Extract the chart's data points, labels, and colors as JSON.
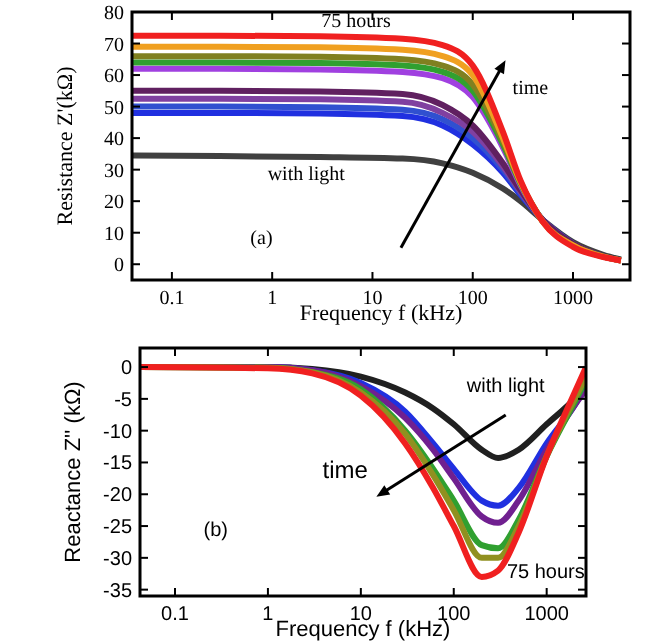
{
  "chart_data": [
    {
      "type": "line",
      "xlabel": "Frequency f (kHz)",
      "ylabel": "Resistance Z'(kΩ)",
      "log": "x",
      "xlim": [
        0.04,
        3700
      ],
      "ylim": [
        -5,
        80
      ],
      "xticks": [
        0.1,
        1,
        10,
        100,
        1000
      ],
      "yticks": [
        0,
        10,
        20,
        30,
        40,
        50,
        60,
        70,
        80
      ],
      "marker": "none",
      "line_style": "solid",
      "grid": false,
      "x": [
        0.04,
        0.3,
        3,
        20,
        50,
        100,
        200,
        300,
        500,
        1000,
        2000,
        3000
      ],
      "series": [
        {
          "color": "#404040",
          "values": [
            34.5,
            34.3,
            34,
            33.5,
            32,
            29,
            24,
            20,
            14,
            7,
            3,
            1.5
          ]
        },
        {
          "color": "#2030e0",
          "values": [
            48,
            48,
            47.8,
            47,
            44,
            38,
            29,
            22,
            14,
            6.5,
            null,
            null
          ]
        },
        {
          "color": "#3050d0",
          "values": [
            50,
            50,
            49.8,
            49,
            46,
            40,
            30,
            22.5,
            14,
            6.5,
            null,
            null
          ]
        },
        {
          "color": "#8040a0",
          "values": [
            52.5,
            52.5,
            52.3,
            51.5,
            48,
            42,
            31,
            23,
            14,
            6.5,
            2.5,
            1.2
          ]
        },
        {
          "color": "#602060",
          "values": [
            55,
            55,
            54.8,
            54,
            50.5,
            44,
            32,
            23.5,
            14,
            6.5,
            2.5,
            1.2
          ]
        },
        {
          "color": "#a040e0",
          "values": [
            62,
            62,
            61.8,
            61,
            59,
            53,
            37,
            25,
            13.5,
            null,
            null,
            null
          ]
        },
        {
          "color": "#30a030",
          "values": [
            64,
            64,
            63.8,
            63,
            61,
            55,
            38,
            25.5,
            13.5,
            null,
            null,
            null
          ]
        },
        {
          "color": "#808020",
          "values": [
            66,
            66,
            65.8,
            65,
            63,
            57,
            39,
            26,
            13.5,
            6,
            2.4,
            1.2
          ]
        },
        {
          "color": "#f0a020",
          "values": [
            69,
            69,
            68.8,
            68,
            66,
            60,
            40,
            26,
            13.5,
            6,
            2.4,
            1.2
          ]
        },
        {
          "color": "#f02020",
          "values": [
            72.5,
            72.5,
            72.3,
            71.5,
            69.5,
            63,
            42,
            26.5,
            13.5,
            5.5,
            2.3,
            1.2
          ]
        }
      ],
      "annotations": [
        "75 hours",
        "with light",
        "time",
        "(a)"
      ]
    },
    {
      "type": "line",
      "xlabel": "Frequency f (kHz)",
      "ylabel": "Reactance Z'' (kΩ)",
      "log": "x",
      "xlim": [
        0.042,
        2650
      ],
      "ylim": [
        -36,
        3
      ],
      "xticks": [
        0.1,
        1,
        10,
        100,
        1000
      ],
      "yticks": [
        0,
        -5,
        -10,
        -15,
        -20,
        -25,
        -30,
        -35
      ],
      "marker": "none",
      "line_style": "solid",
      "grid": false,
      "x": [
        0.042,
        1,
        3,
        10,
        30,
        60,
        100,
        200,
        300,
        500,
        1000,
        2000,
        2650
      ],
      "series": [
        {
          "color": "#202020",
          "values": [
            0,
            0,
            -0.3,
            -1.5,
            -4,
            -6.5,
            -9,
            -13,
            -14.3,
            -13,
            -9,
            -5,
            -3
          ]
        },
        {
          "color": "#2030e0",
          "values": [
            0,
            0,
            -0.5,
            -2.5,
            -7,
            -12,
            -16,
            -21,
            -21.8,
            -19,
            -12,
            -6,
            -3
          ]
        },
        {
          "color": "#702090",
          "values": [
            0,
            0,
            -0.5,
            -3,
            -8,
            -13,
            -17.5,
            -23.5,
            -24.5,
            -21,
            -13,
            -6,
            -3.5
          ]
        },
        {
          "color": "#30a030",
          "values": [
            0,
            -0.1,
            -0.8,
            -3.5,
            -10,
            -16,
            -21,
            -28,
            -28.5,
            -24,
            -14,
            -5.5,
            -2
          ]
        },
        {
          "color": "#909020",
          "values": [
            0,
            -0.1,
            -0.8,
            -4,
            -10.5,
            -17,
            -22.5,
            -30,
            -30,
            -25,
            -14,
            -5,
            -1.5
          ]
        },
        {
          "color": "#f02020",
          "values": [
            0,
            -0.2,
            -1,
            -4.5,
            -12,
            -19,
            -25,
            -33,
            -32,
            -26,
            -14,
            -4,
            0
          ]
        }
      ],
      "annotations": [
        "with light",
        "75 hours",
        "time",
        "(b)"
      ]
    }
  ]
}
